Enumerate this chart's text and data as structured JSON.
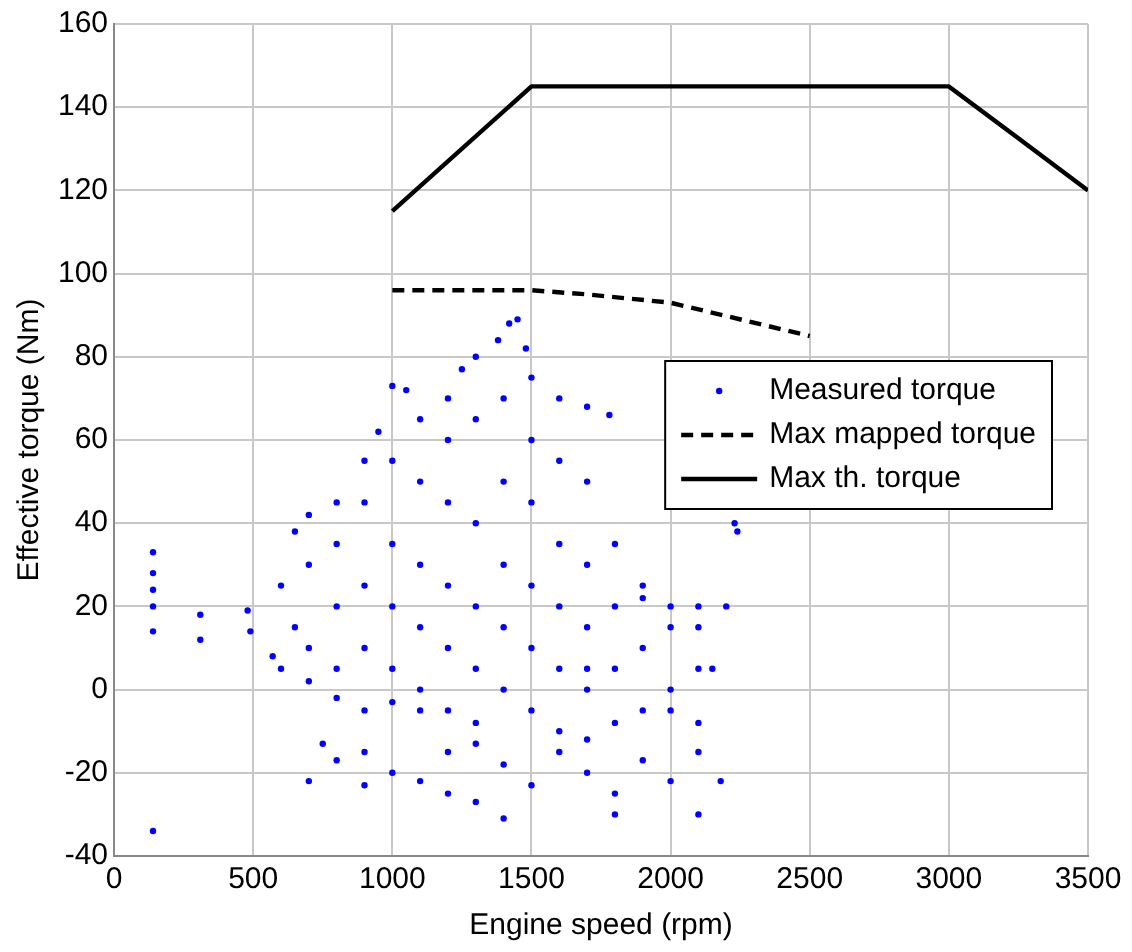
{
  "chart_data": {
    "type": "scatter",
    "xlabel": "Engine speed (rpm)",
    "ylabel": "Effective torque (Nm)",
    "xlim": [
      0,
      3500
    ],
    "xticks": [
      0,
      500,
      1000,
      1500,
      2000,
      2500,
      3000,
      3500
    ],
    "ylim": [
      -40,
      160
    ],
    "yticks": [
      -40,
      -20,
      0,
      20,
      40,
      60,
      80,
      100,
      120,
      140,
      160
    ],
    "grid": true,
    "legend": "right",
    "series": [
      {
        "name": "Measured torque",
        "color": "#0000ff",
        "marker": "circle",
        "x": [
          140,
          140,
          140,
          140,
          140,
          140,
          310,
          310,
          480,
          490,
          600,
          650,
          700,
          800,
          900,
          950,
          1000,
          1050,
          1100,
          1200,
          1250,
          1300,
          1380,
          1420,
          1450,
          1480,
          1500,
          1600,
          1700,
          1780,
          1900,
          2000,
          2100,
          2150,
          2200,
          2230,
          2240,
          570,
          600,
          700,
          800,
          900,
          1000,
          1100,
          1200,
          1300,
          1500,
          1700,
          1800,
          2000,
          2100,
          700,
          750,
          800,
          900,
          1000,
          1100,
          1200,
          1300,
          1400,
          1500,
          1600,
          1700,
          1800,
          1900,
          2000,
          2100,
          2180,
          1300,
          1400,
          1800,
          2100,
          1200,
          900,
          700,
          700,
          800,
          800,
          800,
          900,
          900,
          900,
          1000,
          1000,
          1000,
          1000,
          1100,
          1100,
          1100,
          1100,
          1200,
          1200,
          1200,
          1200,
          1300,
          1300,
          1300,
          1300,
          1400,
          1400,
          1400,
          1400,
          1400,
          1500,
          1500,
          1500,
          1500,
          1600,
          1600,
          1600,
          1600,
          1700,
          1700,
          1700,
          1700,
          1800,
          1800,
          1800,
          1900,
          1900,
          2000,
          2000,
          2100,
          2100,
          650,
          1600,
          1700,
          1900
        ],
        "values": [
          33,
          28,
          24,
          20,
          14,
          -34,
          18,
          12,
          19,
          14,
          25,
          38,
          42,
          45,
          55,
          62,
          73,
          72,
          65,
          70,
          77,
          80,
          84,
          88,
          89,
          82,
          75,
          70,
          68,
          66,
          22,
          20,
          15,
          5,
          20,
          40,
          38,
          8,
          5,
          2,
          -2,
          -5,
          -3,
          -5,
          -5,
          -8,
          -5,
          -12,
          -8,
          -5,
          -8,
          -22,
          -13,
          -17,
          -15,
          -20,
          -22,
          -15,
          -13,
          -18,
          -23,
          -15,
          -20,
          -25,
          -17,
          -22,
          -15,
          -22,
          -27,
          -31,
          -30,
          -30,
          -25,
          -23,
          10,
          30,
          5,
          20,
          35,
          10,
          25,
          45,
          5,
          20,
          35,
          55,
          0,
          15,
          30,
          50,
          10,
          25,
          45,
          60,
          5,
          20,
          40,
          65,
          0,
          15,
          30,
          50,
          70,
          10,
          25,
          45,
          60,
          5,
          20,
          35,
          55,
          0,
          15,
          30,
          50,
          5,
          20,
          35,
          10,
          25,
          0,
          15,
          5,
          20,
          15,
          -10,
          5,
          -5
        ]
      },
      {
        "name": "Max mapped torque",
        "type": "line",
        "color": "#000000",
        "marker": "none",
        "line_style": "dashed",
        "x": [
          1000,
          1500,
          1700,
          2000,
          2500
        ],
        "values": [
          96,
          96,
          95,
          93,
          85
        ]
      },
      {
        "name": "Max th. torque",
        "type": "line",
        "color": "#000000",
        "marker": "none",
        "line_style": "solid",
        "x": [
          1000,
          1500,
          3000,
          3500
        ],
        "values": [
          115,
          145,
          145,
          120
        ]
      }
    ]
  }
}
